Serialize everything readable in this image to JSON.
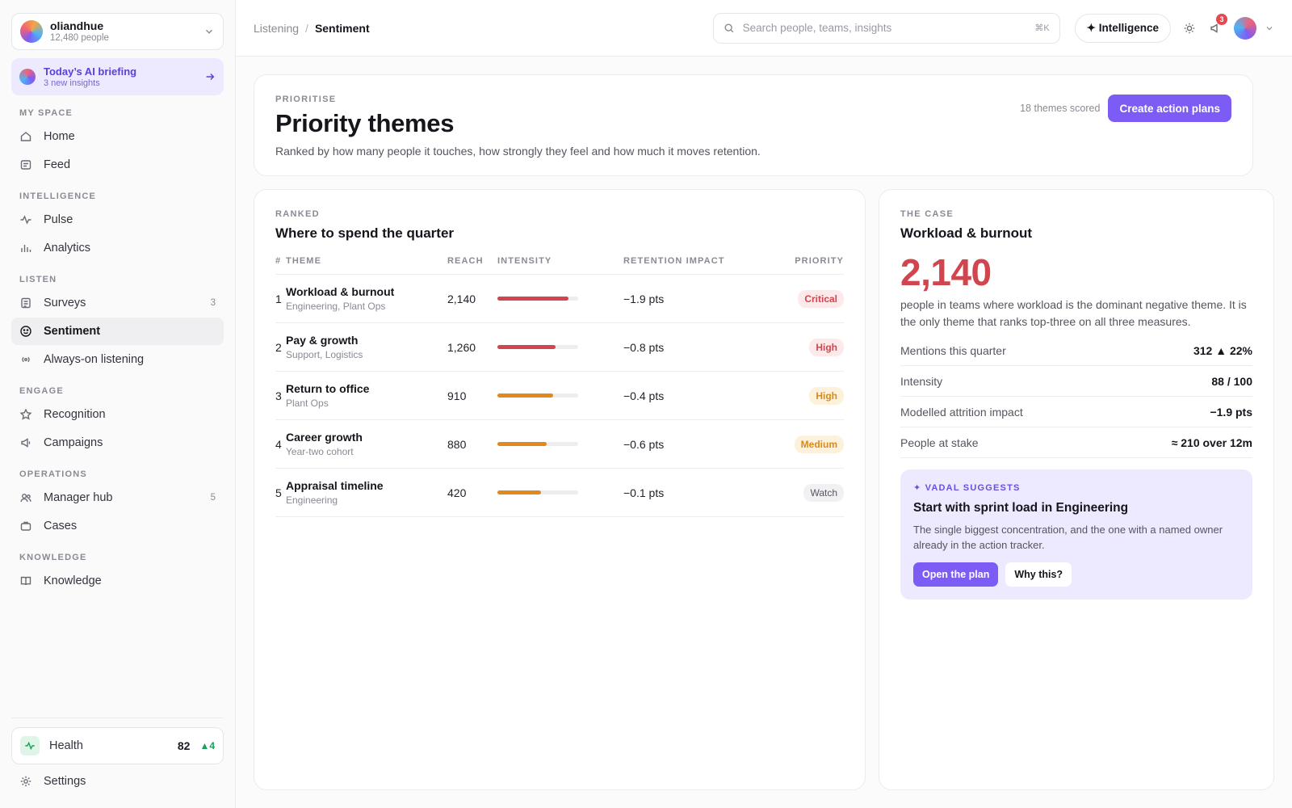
{
  "org": {
    "name": "oliandhue",
    "people": "12,480 people"
  },
  "briefing": {
    "title": "Today’s AI briefing",
    "subtitle": "3 new insights"
  },
  "sidebar": {
    "sections": {
      "my_space": "MY SPACE",
      "intelligence": "INTELLIGENCE",
      "listen": "LISTEN",
      "engage": "ENGAGE",
      "operations": "OPERATIONS",
      "knowledge": "KNOWLEDGE"
    },
    "items": {
      "home": "Home",
      "feed": "Feed",
      "pulse": "Pulse",
      "analytics": "Analytics",
      "surveys": "Surveys",
      "surveys_count": "3",
      "sentiment": "Sentiment",
      "always_on": "Always-on listening",
      "recognition": "Recognition",
      "campaigns": "Campaigns",
      "manager_hub": "Manager hub",
      "manager_hub_count": "5",
      "cases": "Cases",
      "knowledge": "Knowledge"
    },
    "health": {
      "label": "Health",
      "score": "82",
      "delta": "▲4"
    },
    "settings": "Settings"
  },
  "topbar": {
    "breadcrumb": [
      "Listening",
      "Sentiment"
    ],
    "search_placeholder": "Search people, teams, insights",
    "search_shortcut": "⌘K",
    "intelligence_label": "✦ Intelligence",
    "notification_count": "3"
  },
  "header": {
    "eyebrow": "PRIORITISE",
    "title": "Priority themes",
    "description": "Ranked by how many people it touches, how strongly they feel and how much it moves retention.",
    "scored": "18 themes scored",
    "action_label": "Create action plans"
  },
  "ranked": {
    "eyebrow": "RANKED",
    "title": "Where to spend the quarter",
    "columns": {
      "rank": "#",
      "theme": "THEME",
      "reach": "REACH",
      "intensity": "INTENSITY",
      "impact": "RETENTION IMPACT",
      "priority": "PRIORITY"
    },
    "rows": [
      {
        "rank": "1",
        "theme": "Workload & burnout",
        "teams": "Engineering, Plant Ops",
        "reach": "2,140",
        "intensity": 0.88,
        "color": "#d0454e",
        "impact": "−1.9 pts",
        "priority": "Critical",
        "badge": "critical"
      },
      {
        "rank": "2",
        "theme": "Pay & growth",
        "teams": "Support, Logistics",
        "reach": "1,260",
        "intensity": 0.72,
        "color": "#d0454e",
        "impact": "−0.8 pts",
        "priority": "High",
        "badge": "high-red"
      },
      {
        "rank": "3",
        "theme": "Return to office",
        "teams": "Plant Ops",
        "reach": "910",
        "intensity": 0.69,
        "color": "#e08a1e",
        "impact": "−0.4 pts",
        "priority": "High",
        "badge": "high-amber"
      },
      {
        "rank": "4",
        "theme": "Career growth",
        "teams": "Year-two cohort",
        "reach": "880",
        "intensity": 0.61,
        "color": "#e08a1e",
        "impact": "−0.6 pts",
        "priority": "Medium",
        "badge": "medium"
      },
      {
        "rank": "5",
        "theme": "Appraisal timeline",
        "teams": "Engineering",
        "reach": "420",
        "intensity": 0.54,
        "color": "#e08a1e",
        "impact": "−0.1 pts",
        "priority": "Watch",
        "badge": "watch"
      }
    ]
  },
  "case": {
    "eyebrow": "THE CASE",
    "title": "Workload & burnout",
    "big_number": "2,140",
    "description": "people in teams where workload is the dominant negative theme. It is the only theme that ranks top-three on all three measures.",
    "metrics": [
      {
        "label": "Mentions this quarter",
        "value": "312 ▲ 22%"
      },
      {
        "label": "Intensity",
        "value": "88 / 100"
      },
      {
        "label": "Modelled attrition impact",
        "value": "−1.9 pts"
      },
      {
        "label": "People at stake",
        "value": "≈ 210 over 12m"
      }
    ],
    "suggest": {
      "eyebrow": "✦ VADAL SUGGESTS",
      "title": "Start with sprint load in Engineering",
      "description": "The single biggest concentration, and the one with a named owner already in the action tracker.",
      "primary": "Open the plan",
      "secondary": "Why this?"
    }
  }
}
